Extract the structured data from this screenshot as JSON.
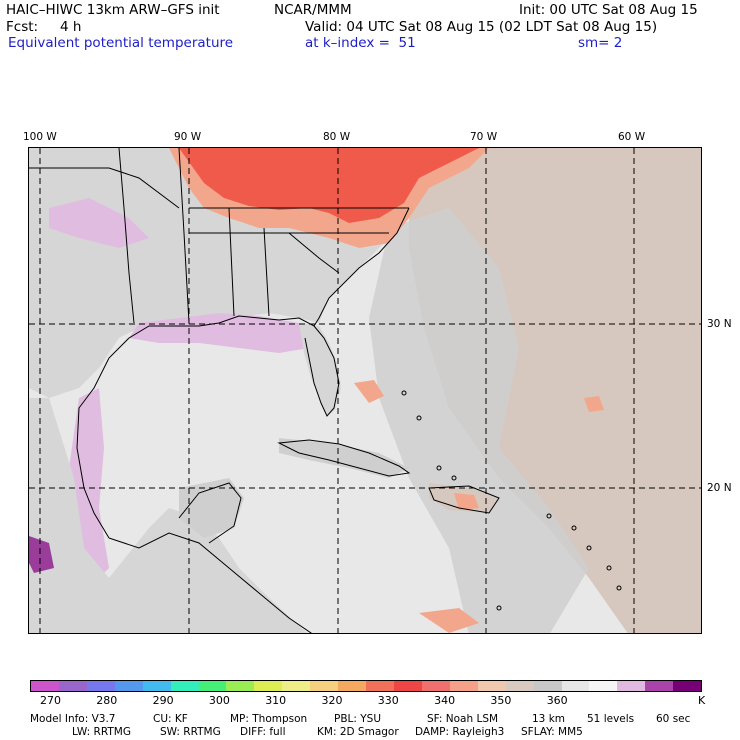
{
  "header": {
    "model_title": "HAIC–HIWC 13km ARW–GFS init",
    "org": "NCAR/MMM",
    "init_time": "Init: 00 UTC Sat 08 Aug 15",
    "fcst_label": "Fcst:",
    "fcst_value": "4 h",
    "valid_time": "Valid: 04 UTC Sat 08 Aug 15 (02 LDT Sat 08 Aug 15)",
    "field_name": "Equivalent potential temperature",
    "k_index": "at k–index =  51",
    "smoothing": "sm= 2"
  },
  "map": {
    "lon_labels": [
      "100 W",
      "90 W",
      "80 W",
      "70 W",
      "60 W"
    ],
    "lat_labels": [
      "30 N",
      "20 N"
    ],
    "colors": {
      "land_gray": "#d6d6d6",
      "ocean_light": "#e8e8e8",
      "tan": "#d6c8be",
      "salmon": "#f2a78c",
      "red": "#f05a4a",
      "lavender": "#e0bde0",
      "purple": "#9a3c9a"
    }
  },
  "colorbar": {
    "colors": [
      "#cc55cc",
      "#9966cc",
      "#7777ee",
      "#5599ee",
      "#44bbee",
      "#33eebb",
      "#44ee77",
      "#99ee55",
      "#ddee55",
      "#eeee88",
      "#f5d080",
      "#f5a860",
      "#f0705a",
      "#f04545",
      "#f07070",
      "#f5a088",
      "#f0c8b0",
      "#d8cac0",
      "#c8c8c8",
      "#e6e6e6",
      "#f5f5f5",
      "#e0b8e0",
      "#aa44aa",
      "#770077"
    ],
    "tick_labels": [
      "270",
      "280",
      "290",
      "300",
      "310",
      "320",
      "330",
      "340",
      "350",
      "360"
    ],
    "unit": "K"
  },
  "footer": {
    "line1": [
      "Model Info: V3.7",
      "CU: KF",
      "MP: Thompson",
      "PBL: YSU",
      "SF: Noah LSM",
      "13 km",
      "51 levels",
      "60 sec"
    ],
    "line2": [
      "LW: RRTMG",
      "SW: RRTMG",
      "DIFF: full",
      "KM: 2D Smagor",
      "DAMP: Rayleigh3",
      "SFLAY: MM5"
    ]
  }
}
